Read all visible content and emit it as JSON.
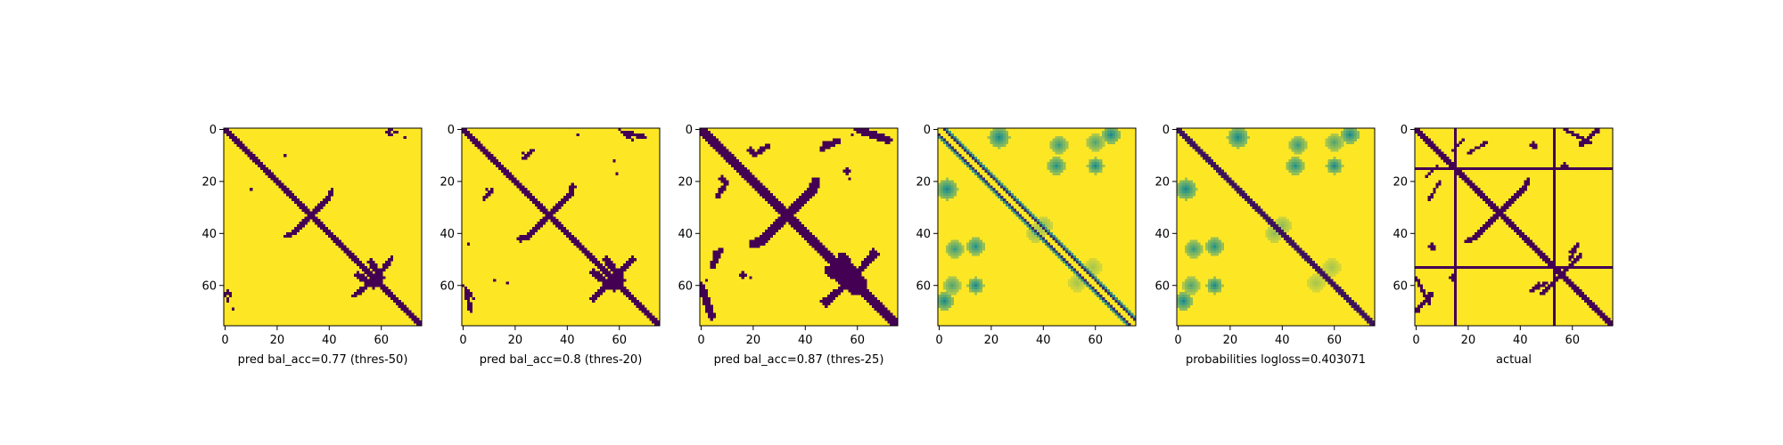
{
  "chart_data": {
    "type": "heatmap",
    "matrix_size": 76,
    "axes": {
      "xticks": [
        0,
        20,
        40,
        60
      ],
      "yticks": [
        0,
        20,
        40,
        60
      ],
      "xlim": [
        0,
        75
      ],
      "ylim": [
        75,
        0
      ],
      "grid": false
    },
    "colors": {
      "low": "#440154",
      "mid": "#21918c",
      "high": "#fde725"
    },
    "panels": [
      {
        "caption": "pred bal_acc=0.77 (thres-50)",
        "kind": "binary",
        "diagonal_halfwidth": 1.6,
        "cross": {
          "center": [
            33,
            33
          ],
          "arm": 7,
          "halfwidth": 0.9
        },
        "features": [
          {
            "shape": "segment",
            "from": [
              56,
              51
            ],
            "to": [
              60,
              57
            ],
            "halfwidth": 1.2
          },
          {
            "shape": "segment",
            "from": [
              54,
              60
            ],
            "to": [
              49,
              64
            ],
            "halfwidth": 0.6
          },
          {
            "shape": "segment",
            "from": [
              60,
              55
            ],
            "to": [
              64,
              50
            ],
            "halfwidth": 0.6
          },
          {
            "shape": "segment",
            "from": [
              63,
              0
            ],
            "to": [
              66,
              1
            ],
            "halfwidth": 0.6
          },
          {
            "shape": "segment",
            "from": [
              1,
              62
            ],
            "to": [
              2,
              64
            ],
            "halfwidth": 0.8
          },
          {
            "shape": "dot",
            "at": [
              23,
              10
            ],
            "r": 0.8
          },
          {
            "shape": "dot",
            "at": [
              3,
              69
            ],
            "r": 0.7
          }
        ]
      },
      {
        "caption": "pred bal_acc=0.8 (thres-20)",
        "kind": "binary",
        "diagonal_halfwidth": 1.8,
        "cross": {
          "center": [
            33,
            33
          ],
          "arm": 8,
          "halfwidth": 1.0
        },
        "features": [
          {
            "shape": "segment",
            "from": [
              55,
              50
            ],
            "to": [
              61,
              58
            ],
            "halfwidth": 1.4
          },
          {
            "shape": "segment",
            "from": [
              55,
              60
            ],
            "to": [
              49,
              65
            ],
            "halfwidth": 0.7
          },
          {
            "shape": "segment",
            "from": [
              61,
              55
            ],
            "to": [
              66,
              50
            ],
            "halfwidth": 0.7
          },
          {
            "shape": "segment",
            "from": [
              23,
              11
            ],
            "to": [
              27,
              8
            ],
            "halfwidth": 0.6
          },
          {
            "shape": "segment",
            "from": [
              60,
              0
            ],
            "to": [
              65,
              4
            ],
            "halfwidth": 0.6
          },
          {
            "shape": "segment",
            "from": [
              1,
              62
            ],
            "to": [
              3,
              70
            ],
            "halfwidth": 0.9
          },
          {
            "shape": "dot",
            "at": [
              9,
              23
            ],
            "r": 0.8
          },
          {
            "shape": "dot",
            "at": [
              12,
              58
            ],
            "r": 0.8
          },
          {
            "shape": "dot",
            "at": [
              59,
              17
            ],
            "r": 0.7
          },
          {
            "shape": "dot",
            "at": [
              44,
              2
            ],
            "r": 0.7
          }
        ]
      },
      {
        "caption": "pred bal_acc=0.87 (thres-25)",
        "kind": "binary",
        "diagonal_halfwidth": 2.2,
        "cross": {
          "center": [
            33,
            33
          ],
          "arm": 10,
          "halfwidth": 1.6
        },
        "features": [
          {
            "shape": "segment",
            "from": [
              54,
              49
            ],
            "to": [
              62,
              59
            ],
            "halfwidth": 1.8
          },
          {
            "shape": "segment",
            "from": [
              54,
              61
            ],
            "to": [
              47,
              66
            ],
            "halfwidth": 1.0
          },
          {
            "shape": "segment",
            "from": [
              61,
              54
            ],
            "to": [
              67,
              48
            ],
            "halfwidth": 1.0
          },
          {
            "shape": "segment",
            "from": [
              20,
              10
            ],
            "to": [
              26,
              6
            ],
            "halfwidth": 0.9
          },
          {
            "shape": "segment",
            "from": [
              47,
              7
            ],
            "to": [
              53,
              4
            ],
            "halfwidth": 0.9
          },
          {
            "shape": "segment",
            "from": [
              0,
              60
            ],
            "to": [
              4,
              72
            ],
            "halfwidth": 1.4
          },
          {
            "shape": "segment",
            "from": [
              5,
              48
            ],
            "to": [
              8,
              46
            ],
            "halfwidth": 0.9
          },
          {
            "shape": "dot",
            "at": [
              8,
              19
            ],
            "r": 1.0
          },
          {
            "shape": "dot",
            "at": [
              57,
              19
            ],
            "r": 0.9
          },
          {
            "shape": "dot",
            "at": [
              16,
              56
            ],
            "r": 1.0
          },
          {
            "shape": "dot",
            "at": [
              58,
              2
            ],
            "r": 0.9
          }
        ]
      },
      {
        "caption": "",
        "kind": "heat",
        "diagonal_halfwidth": 0,
        "offset_bands": [
          2,
          -2
        ],
        "blobs": [
          {
            "at": [
              46,
              6
            ],
            "r": 3.5,
            "v": 0.55
          },
          {
            "at": [
              6,
              46
            ],
            "r": 3.5,
            "v": 0.55
          },
          {
            "at": [
              60,
              5
            ],
            "r": 3.5,
            "v": 0.6
          },
          {
            "at": [
              5,
              60
            ],
            "r": 3.5,
            "v": 0.6
          },
          {
            "at": [
              3,
              23
            ],
            "r": 4,
            "v": 0.45
          },
          {
            "at": [
              23,
              3
            ],
            "r": 4,
            "v": 0.45
          },
          {
            "at": [
              40,
              37
            ],
            "r": 3.5,
            "v": 0.75
          },
          {
            "at": [
              37,
              40
            ],
            "r": 3.5,
            "v": 0.75
          },
          {
            "at": [
              14,
              45
            ],
            "r": 3.5,
            "v": 0.5
          },
          {
            "at": [
              45,
              14
            ],
            "r": 3.5,
            "v": 0.5
          },
          {
            "at": [
              14,
              60
            ],
            "r": 3,
            "v": 0.45
          },
          {
            "at": [
              60,
              14
            ],
            "r": 3,
            "v": 0.45
          },
          {
            "at": [
              59,
              53
            ],
            "r": 3.5,
            "v": 0.8
          },
          {
            "at": [
              53,
              59
            ],
            "r": 3.5,
            "v": 0.8
          },
          {
            "at": [
              2,
              66
            ],
            "r": 3.5,
            "v": 0.45
          },
          {
            "at": [
              66,
              2
            ],
            "r": 3.5,
            "v": 0.45
          }
        ]
      },
      {
        "caption": "probabilities logloss=0.403071",
        "kind": "heat",
        "diagonal_halfwidth": 1.7,
        "offset_bands": [],
        "blobs": [
          {
            "at": [
              46,
              6
            ],
            "r": 3.5,
            "v": 0.55
          },
          {
            "at": [
              6,
              46
            ],
            "r": 3.5,
            "v": 0.55
          },
          {
            "at": [
              60,
              5
            ],
            "r": 3.5,
            "v": 0.6
          },
          {
            "at": [
              5,
              60
            ],
            "r": 3.5,
            "v": 0.6
          },
          {
            "at": [
              3,
              23
            ],
            "r": 4,
            "v": 0.45
          },
          {
            "at": [
              23,
              3
            ],
            "r": 4,
            "v": 0.45
          },
          {
            "at": [
              40,
              37
            ],
            "r": 3.5,
            "v": 0.75
          },
          {
            "at": [
              37,
              40
            ],
            "r": 3.5,
            "v": 0.75
          },
          {
            "at": [
              14,
              45
            ],
            "r": 3.5,
            "v": 0.5
          },
          {
            "at": [
              45,
              14
            ],
            "r": 3.5,
            "v": 0.5
          },
          {
            "at": [
              14,
              60
            ],
            "r": 3,
            "v": 0.45
          },
          {
            "at": [
              60,
              14
            ],
            "r": 3,
            "v": 0.45
          },
          {
            "at": [
              59,
              53
            ],
            "r": 3.5,
            "v": 0.8
          },
          {
            "at": [
              53,
              59
            ],
            "r": 3.5,
            "v": 0.8
          },
          {
            "at": [
              2,
              66
            ],
            "r": 3.5,
            "v": 0.45
          },
          {
            "at": [
              66,
              2
            ],
            "r": 3.5,
            "v": 0.45
          }
        ]
      },
      {
        "caption": "actual",
        "kind": "binary",
        "diagonal_halfwidth": 1.6,
        "cross": {
          "center": [
            32,
            32
          ],
          "arm": 10,
          "halfwidth": 0.8
        },
        "lines": {
          "rows": [
            15,
            53
          ],
          "cols": [
            15,
            53
          ]
        },
        "features": [
          {
            "shape": "segment",
            "from": [
              4,
              18
            ],
            "to": [
              8,
              14
            ],
            "halfwidth": 0.6
          },
          {
            "shape": "segment",
            "from": [
              20,
              9
            ],
            "to": [
              27,
              5
            ],
            "halfwidth": 0.6
          },
          {
            "shape": "segment",
            "from": [
              57,
              0
            ],
            "to": [
              67,
              5
            ],
            "halfwidth": 0.7
          },
          {
            "shape": "segment",
            "from": [
              57,
              55
            ],
            "to": [
              63,
              48
            ],
            "halfwidth": 0.7
          },
          {
            "shape": "segment",
            "from": [
              44,
              62
            ],
            "to": [
              50,
              59
            ],
            "halfwidth": 0.7
          },
          {
            "shape": "segment",
            "from": [
              0,
              70
            ],
            "to": [
              6,
              63
            ],
            "halfwidth": 0.8
          },
          {
            "shape": "dot",
            "at": [
              6,
              45
            ],
            "r": 1.2
          },
          {
            "shape": "dot",
            "at": [
              14,
              57
            ],
            "r": 1.1
          },
          {
            "shape": "dot",
            "at": [
              46,
              7
            ],
            "r": 0.8
          },
          {
            "shape": "dot",
            "at": [
              60,
              47
            ],
            "r": 1.0
          }
        ]
      }
    ]
  }
}
